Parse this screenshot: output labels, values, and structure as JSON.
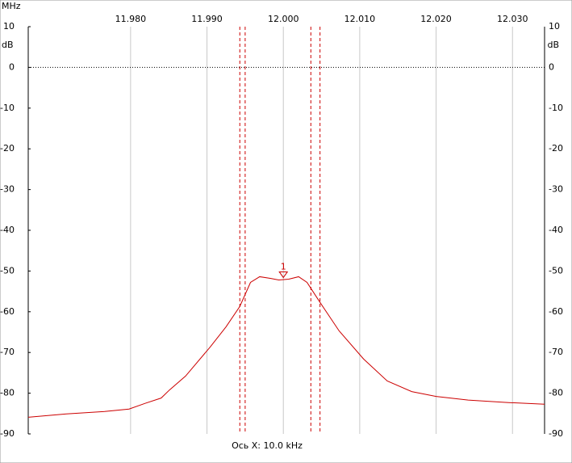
{
  "chart_data": {
    "type": "line",
    "x_unit": "MHz",
    "y_unit": "dB",
    "x_label": "Ось X: 10.0 kHz",
    "xlim": [
      11.9666,
      12.0342
    ],
    "xticks": [
      {
        "value": 11.98,
        "label": "11.980"
      },
      {
        "value": 11.99,
        "label": "11.990"
      },
      {
        "value": 12.0,
        "label": "12.000"
      },
      {
        "value": 12.01,
        "label": "12.010"
      },
      {
        "value": 12.02,
        "label": "12.020"
      },
      {
        "value": 12.03,
        "label": "12.030"
      }
    ],
    "ylim": [
      -90,
      10
    ],
    "yticks": [
      10,
      0,
      -10,
      -20,
      -30,
      -40,
      -50,
      -60,
      -70,
      -80,
      -90
    ],
    "grid": true,
    "x": [
      11.9666,
      11.9716,
      11.9766,
      11.9798,
      11.9819,
      11.984,
      11.9851,
      11.9872,
      11.9904,
      11.9925,
      11.9943,
      11.9957,
      11.9969,
      11.9983,
      11.9994,
      12.0007,
      12.002,
      12.0031,
      12.0048,
      12.0073,
      12.0105,
      12.0136,
      12.0168,
      12.02,
      12.0242,
      12.0295,
      12.0342
    ],
    "series": [
      {
        "color": "#cc0000",
        "values": [
          -85.9,
          -85.1,
          -84.5,
          -83.9,
          -82.5,
          -81.2,
          -79.2,
          -75.8,
          -68.7,
          -63.7,
          -58.7,
          -52.8,
          -51.4,
          -51.8,
          -52.2,
          -52.0,
          -51.4,
          -52.8,
          -57.7,
          -64.7,
          -71.6,
          -77.0,
          -79.6,
          -80.8,
          -81.7,
          -82.3,
          -82.7
        ]
      }
    ],
    "marker_lines": [
      11.9943,
      11.995,
      12.0036,
      12.0048
    ],
    "markers": [
      {
        "label": "1",
        "x": 12.0,
        "y": -51.6
      }
    ]
  }
}
